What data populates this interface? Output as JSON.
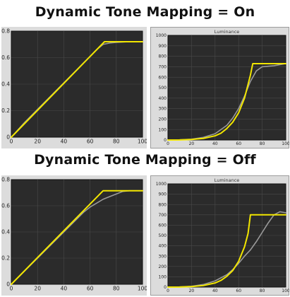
{
  "headings": {
    "on": "Dynamic Tone Mapping = On",
    "off": "Dynamic Tone Mapping = Off"
  },
  "colors": {
    "plot_bg": "#2b2b2b",
    "frame_bg": "#dcdcdc",
    "grid": "#4a4a4a",
    "target": "#9a9a9a",
    "measured": "#f2e600"
  },
  "chart_data": [
    {
      "id": "on-left",
      "type": "line",
      "title": "",
      "xlim": [
        0,
        100
      ],
      "ylim": [
        0,
        0.8
      ],
      "x_ticks": [
        "0",
        "20",
        "40",
        "60",
        "80",
        "100"
      ],
      "y_ticks": [
        "0",
        "0.2",
        "0.4",
        "0.6",
        "0.8"
      ],
      "series": [
        {
          "color": "#9a9a9a",
          "x": [
            0,
            10,
            20,
            30,
            40,
            50,
            55,
            60,
            65,
            70,
            75,
            80,
            90,
            100
          ],
          "y": [
            0,
            0.11,
            0.21,
            0.31,
            0.41,
            0.51,
            0.56,
            0.61,
            0.66,
            0.7,
            0.71,
            0.715,
            0.72,
            0.72
          ]
        },
        {
          "color": "#f2e600",
          "x": [
            0,
            71,
            100
          ],
          "y": [
            0,
            0.72,
            0.72
          ]
        }
      ]
    },
    {
      "id": "on-right",
      "type": "line",
      "title": "Luminance",
      "xlim": [
        0,
        100
      ],
      "ylim": [
        0,
        1000
      ],
      "x_ticks": [
        "0",
        "20",
        "40",
        "60",
        "80",
        "100"
      ],
      "y_ticks": [
        "0",
        "100",
        "200",
        "300",
        "400",
        "500",
        "600",
        "700",
        "800",
        "900",
        "1000"
      ],
      "series": [
        {
          "color": "#9a9a9a",
          "x": [
            0,
            10,
            20,
            30,
            40,
            50,
            55,
            60,
            65,
            70,
            75,
            80,
            85,
            90,
            100
          ],
          "y": [
            0,
            2,
            8,
            25,
            60,
            140,
            210,
            300,
            420,
            560,
            660,
            700,
            705,
            710,
            730
          ]
        },
        {
          "color": "#f2e600",
          "x": [
            0,
            10,
            20,
            30,
            40,
            45,
            50,
            55,
            60,
            65,
            70,
            72,
            100
          ],
          "y": [
            0,
            1,
            5,
            15,
            40,
            65,
            110,
            170,
            260,
            400,
            620,
            730,
            730
          ]
        }
      ]
    },
    {
      "id": "off-left",
      "type": "line",
      "title": "",
      "xlim": [
        0,
        100
      ],
      "ylim": [
        0,
        0.8
      ],
      "x_ticks": [
        "0",
        "20",
        "40",
        "60",
        "80",
        "100"
      ],
      "y_ticks": [
        "0",
        "0.2",
        "0.4",
        "0.6",
        "0.8"
      ],
      "series": [
        {
          "color": "#9a9a9a",
          "x": [
            0,
            10,
            20,
            30,
            40,
            50,
            55,
            60,
            65,
            70,
            75,
            80,
            85,
            90,
            100
          ],
          "y": [
            0,
            0.1,
            0.2,
            0.3,
            0.4,
            0.5,
            0.55,
            0.59,
            0.62,
            0.65,
            0.67,
            0.69,
            0.71,
            0.715,
            0.715
          ]
        },
        {
          "color": "#f2e600",
          "x": [
            0,
            70,
            100
          ],
          "y": [
            0,
            0.715,
            0.715
          ]
        }
      ]
    },
    {
      "id": "off-right",
      "type": "line",
      "title": "Luminance",
      "xlim": [
        0,
        100
      ],
      "ylim": [
        0,
        1000
      ],
      "x_ticks": [
        "0",
        "20",
        "40",
        "60",
        "80",
        "100"
      ],
      "y_ticks": [
        "0",
        "100",
        "200",
        "300",
        "400",
        "500",
        "600",
        "700",
        "800",
        "900",
        "1000"
      ],
      "series": [
        {
          "color": "#9a9a9a",
          "x": [
            0,
            10,
            20,
            30,
            40,
            50,
            55,
            60,
            65,
            70,
            75,
            80,
            85,
            90,
            95,
            100
          ],
          "y": [
            0,
            2,
            8,
            25,
            60,
            120,
            170,
            230,
            300,
            360,
            440,
            530,
            620,
            700,
            730,
            720
          ]
        },
        {
          "color": "#f2e600",
          "x": [
            0,
            10,
            20,
            30,
            40,
            45,
            50,
            55,
            60,
            65,
            68,
            70,
            100
          ],
          "y": [
            0,
            1,
            5,
            15,
            40,
            65,
            105,
            160,
            250,
            390,
            520,
            700,
            700
          ]
        }
      ]
    }
  ]
}
